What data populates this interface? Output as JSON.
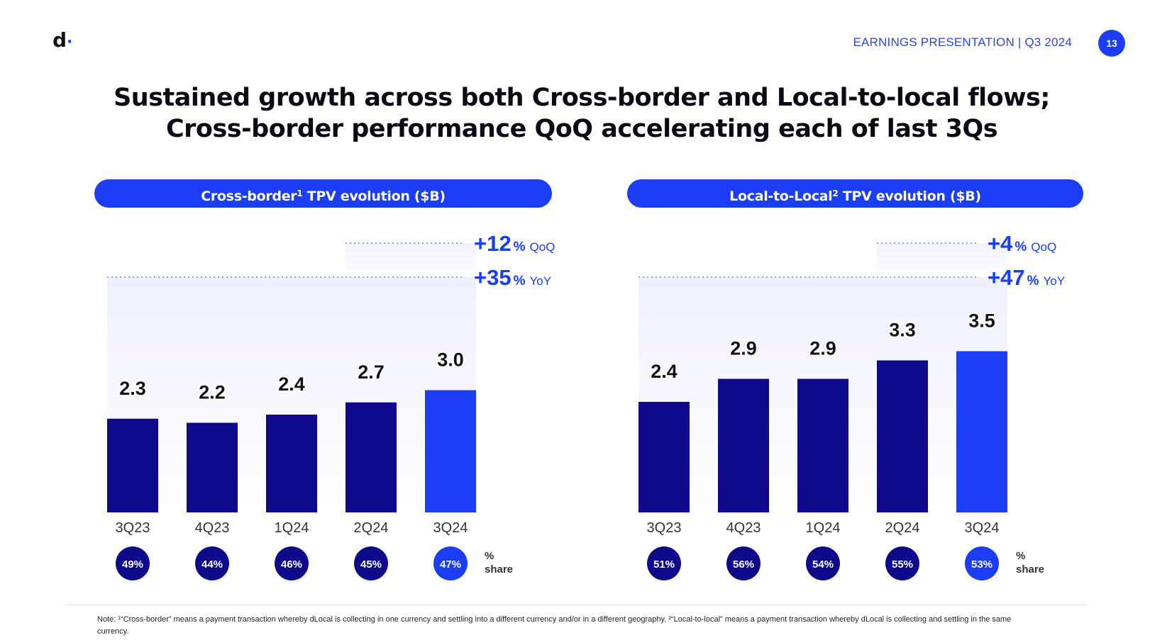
{
  "header": {
    "logo_letter": "d",
    "logo_dot": "·",
    "presentation_label": "EARNINGS PRESENTATION | Q3 2024",
    "page_number": "13"
  },
  "title": {
    "line1": "Sustained growth across both Cross-border and Local-to-local flows;",
    "line2": "Cross-border performance QoQ accelerating each of last 3Qs"
  },
  "colors": {
    "dark_bar": "#0f0a8c",
    "highlight_bar": "#1a3df5",
    "accent_text": "#1a3df5",
    "pill_bg": "#1a3df5"
  },
  "chart_data": [
    {
      "type": "bar",
      "title_main": "Cross-border",
      "title_sup": "1",
      "title_rest": " TPV evolution ($B)",
      "categories": [
        "3Q23",
        "4Q23",
        "1Q24",
        "2Q24",
        "3Q24"
      ],
      "values": [
        2.3,
        2.2,
        2.4,
        2.7,
        3.0
      ],
      "value_labels": [
        "2.3",
        "2.2",
        "2.4",
        "2.7",
        "3.0"
      ],
      "highlight_index": 4,
      "ylabel": "$B",
      "share_values": [
        "49%",
        "44%",
        "46%",
        "45%",
        "47%"
      ],
      "share_label_line1": "%",
      "share_label_line2": "share",
      "growth": [
        {
          "value": "+12",
          "unit": "%",
          "label": "QoQ",
          "from_index": 3
        },
        {
          "value": "+35",
          "unit": "%",
          "label": "YoY",
          "from_index": 0
        }
      ]
    },
    {
      "type": "bar",
      "title_main": "Local-to-Local",
      "title_sup": "2",
      "title_rest": " TPV evolution ($B)",
      "categories": [
        "3Q23",
        "4Q23",
        "1Q24",
        "2Q24",
        "3Q24"
      ],
      "values": [
        2.4,
        2.9,
        2.9,
        3.3,
        3.5
      ],
      "value_labels": [
        "2.4",
        "2.9",
        "2.9",
        "3.3",
        "3.5"
      ],
      "highlight_index": 4,
      "ylabel": "$B",
      "share_values": [
        "51%",
        "56%",
        "54%",
        "55%",
        "53%"
      ],
      "share_label_line1": "%",
      "share_label_line2": "share",
      "growth": [
        {
          "value": "+4",
          "unit": "%",
          "label": "QoQ",
          "from_index": 3
        },
        {
          "value": "+47",
          "unit": "%",
          "label": "YoY",
          "from_index": 0
        }
      ]
    }
  ],
  "footer": {
    "note": "Note: ¹“Cross-border” means a payment transaction whereby dLocal is collecting in one currency and settling into a different currency and/or in a different geography. ²“Local-to-local” means a payment transaction whereby dLocal is collecting and settling in the same currency."
  }
}
